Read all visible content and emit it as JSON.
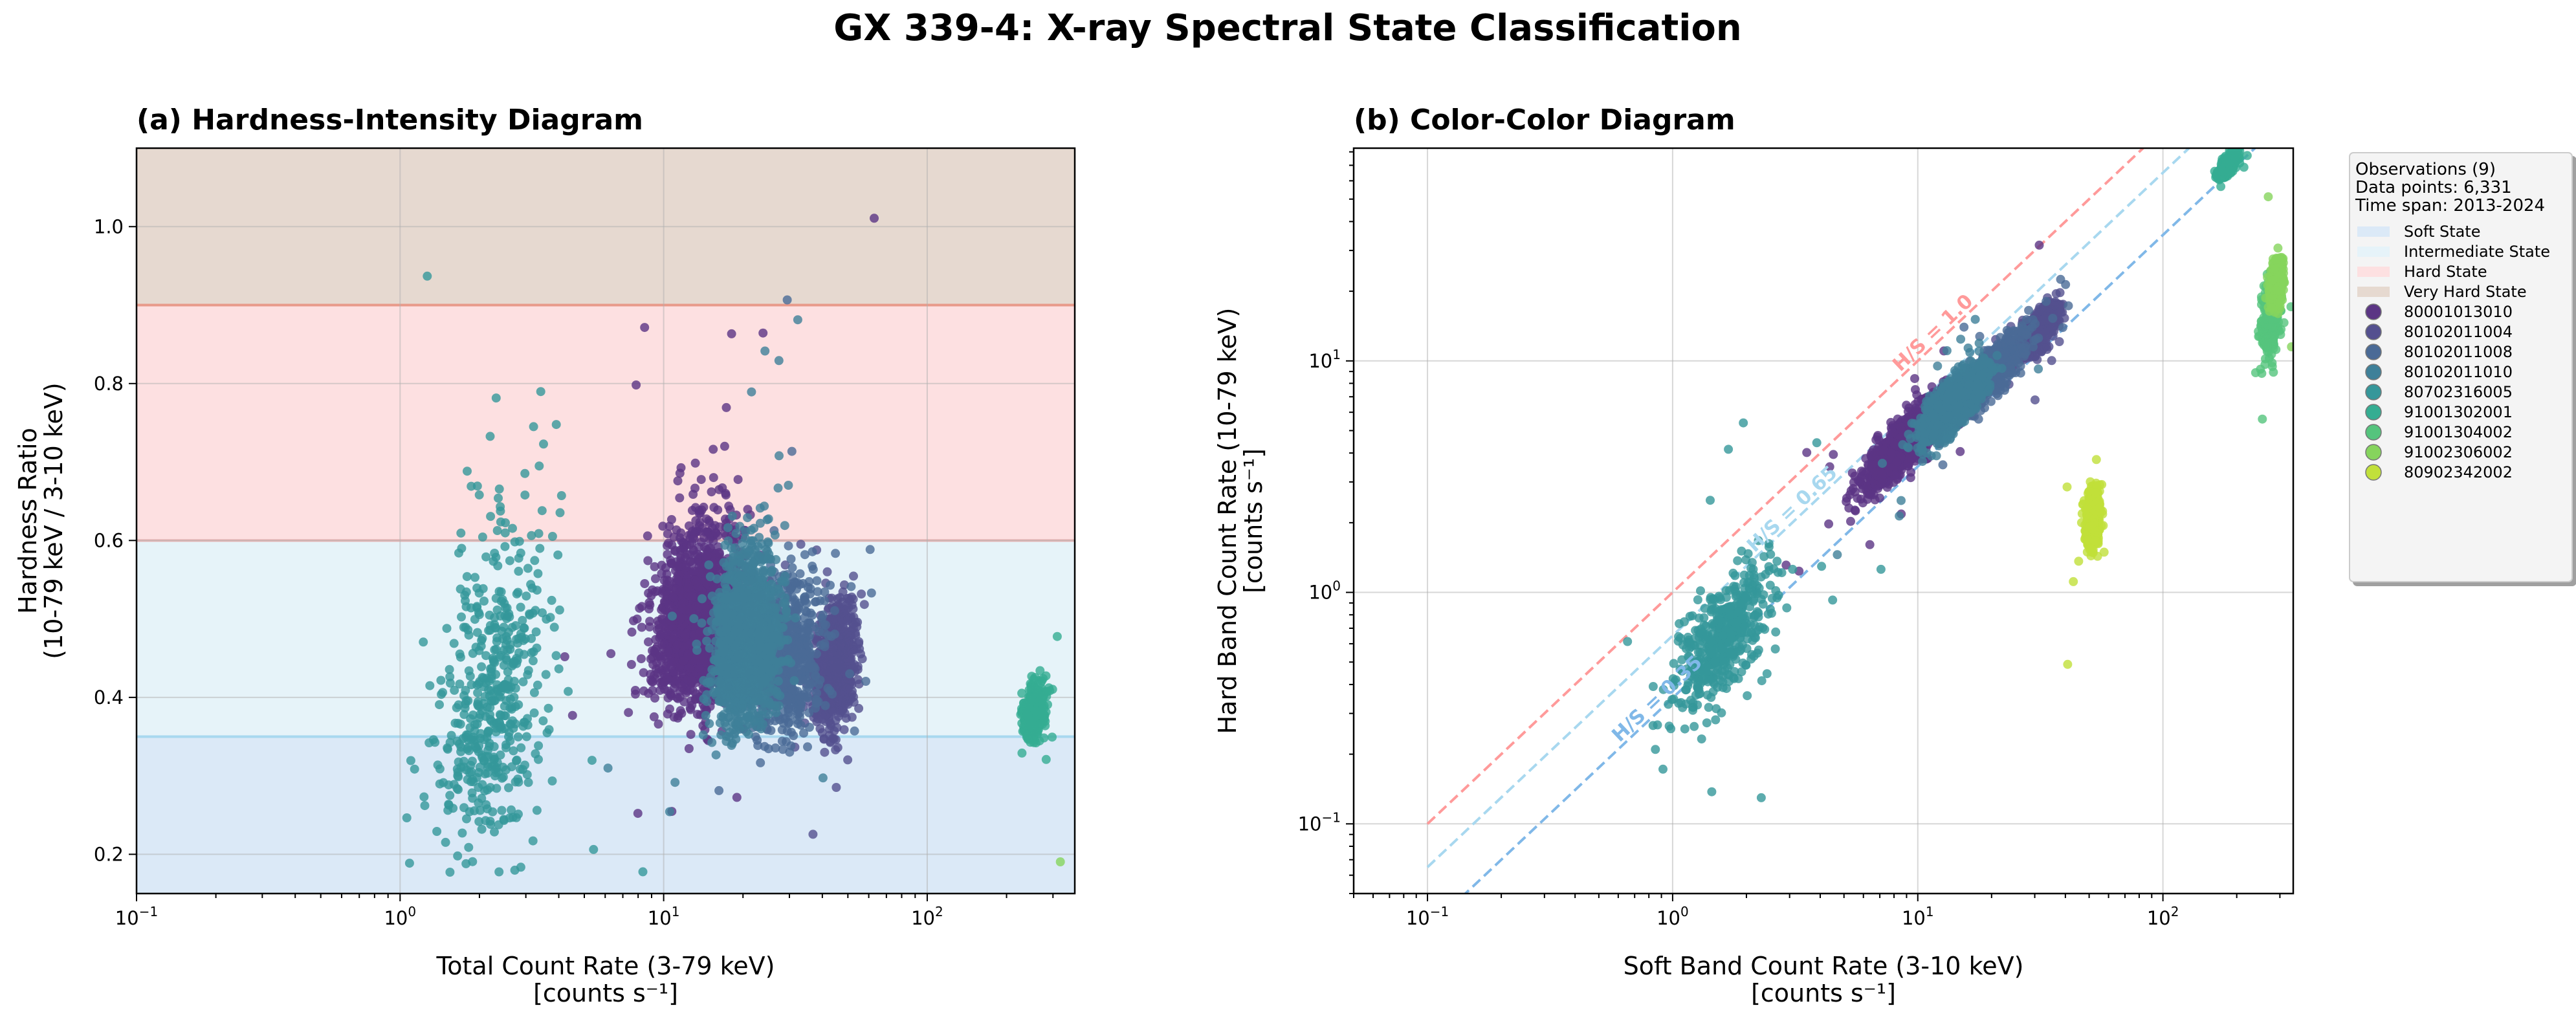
{
  "title": "GX 339-4: X-ray Spectral State Classification",
  "chart_data": [
    {
      "type": "scatter",
      "title": "(a) Hardness-Intensity Diagram",
      "xlabel": [
        "Total Count Rate (3-79 keV)",
        "[counts s⁻¹]"
      ],
      "ylabel": [
        "Hardness Ratio",
        "(10-79 keV / 3-10 keV)"
      ],
      "xscale": "log",
      "xlim": [
        0.1,
        363
      ],
      "ylim": [
        0.15,
        1.1
      ],
      "xticks": [
        {
          "base": "10",
          "exp": "−1",
          "value": 0.1
        },
        {
          "base": "10",
          "exp": "0",
          "value": 1
        },
        {
          "base": "10",
          "exp": "1",
          "value": 10
        },
        {
          "base": "10",
          "exp": "2",
          "value": 100
        }
      ],
      "yticks": [
        {
          "label": "0.2",
          "value": 0.2
        },
        {
          "label": "0.4",
          "value": 0.4
        },
        {
          "label": "0.6",
          "value": 0.6
        },
        {
          "label": "0.8",
          "value": 0.8
        },
        {
          "label": "1.0",
          "value": 1.0
        }
      ],
      "grid": true,
      "state_bands": [
        {
          "name": "Soft State",
          "range": [
            0.15,
            0.35
          ],
          "color": "#dbe9f7"
        },
        {
          "name": "Intermediate State",
          "range": [
            0.35,
            0.6
          ],
          "color": "#e6f3f9"
        },
        {
          "name": "Hard State",
          "range": [
            0.6,
            0.9
          ],
          "color": "#fde0e1"
        },
        {
          "name": "Very Hard State",
          "range": [
            0.9,
            1.1
          ],
          "color": "#e6d9d0"
        }
      ],
      "band_boundaries": [
        {
          "value": 0.35,
          "color": "#a8d8ef"
        },
        {
          "value": 0.6,
          "color": "#e8b4b4"
        },
        {
          "value": 0.9,
          "color": "#e89a8a"
        }
      ]
    },
    {
      "type": "scatter",
      "title": "(b) Color-Color Diagram",
      "xlabel": [
        "Soft Band Count Rate (3-10 keV)",
        "[counts s⁻¹]"
      ],
      "ylabel": [
        "Hard Band Count Rate (10-79 keV)",
        "[counts s⁻¹]"
      ],
      "xscale": "log",
      "yscale": "log",
      "xlim": [
        0.05,
        340
      ],
      "ylim": [
        0.05,
        83
      ],
      "xticks": [
        {
          "base": "10",
          "exp": "−1",
          "value": 0.1
        },
        {
          "base": "10",
          "exp": "0",
          "value": 1
        },
        {
          "base": "10",
          "exp": "1",
          "value": 10
        },
        {
          "base": "10",
          "exp": "2",
          "value": 100
        }
      ],
      "yticks": [
        {
          "base": "10",
          "exp": "−1",
          "value": 0.1
        },
        {
          "base": "10",
          "exp": "0",
          "value": 1
        },
        {
          "base": "10",
          "exp": "1",
          "value": 10
        }
      ],
      "grid": true,
      "reference_lines": [
        {
          "label": "H/S = 1.0",
          "ratio": 1.0,
          "color": "#ff9a9a",
          "label_at": 12
        },
        {
          "label": "H/S = 0.65",
          "ratio": 0.65,
          "color": "#a8d8ef",
          "label_at": 3.2
        },
        {
          "label": "H/S = 0.35",
          "ratio": 0.35,
          "color": "#80b8e8",
          "label_at": 0.9
        }
      ],
      "legend": {
        "placement": "outside-right",
        "header": [
          "Observations (9)",
          "Data points: 6,331",
          "Time span: 2013-2024"
        ]
      }
    }
  ],
  "series": [
    {
      "name": "80001013010",
      "color": "#5b3584",
      "soft_center": 9,
      "soft_dex": 0.08,
      "hr_center": 0.5,
      "hr_dex": 0.05
    },
    {
      "name": "80102011004",
      "color": "#54508f",
      "soft_center": 31,
      "soft_dex": 0.04,
      "hr_center": 0.44,
      "hr_dex": 0.04
    },
    {
      "name": "80102011008",
      "color": "#4a6a96",
      "soft_center": 20,
      "soft_dex": 0.07,
      "hr_center": 0.45,
      "hr_dex": 0.05
    },
    {
      "name": "80102011010",
      "color": "#3e8099",
      "soft_center": 14,
      "soft_dex": 0.06,
      "hr_center": 0.47,
      "hr_dex": 0.05
    },
    {
      "name": "80702316005",
      "color": "#35979a",
      "soft_center": 1.6,
      "soft_dex": 0.1,
      "hr_center": 0.4,
      "hr_dex": 0.12
    },
    {
      "name": "91001302001",
      "color": "#35ad92",
      "soft_center": 185,
      "soft_dex": 0.02,
      "hr_center": 0.38,
      "hr_dex": 0.02
    },
    {
      "name": "91001304002",
      "color": "#55c47d",
      "soft_center": 275,
      "soft_dex": 0.02,
      "hr_center": 0.055,
      "hr_dex": 0.08
    },
    {
      "name": "91002306002",
      "color": "#86d45d",
      "soft_center": 290,
      "soft_dex": 0.015,
      "hr_center": 0.075,
      "hr_dex": 0.05
    },
    {
      "name": "80902342002",
      "color": "#c1e03a",
      "soft_center": 52,
      "soft_dex": 0.015,
      "hr_center": 0.04,
      "hr_dex": 0.06
    }
  ]
}
